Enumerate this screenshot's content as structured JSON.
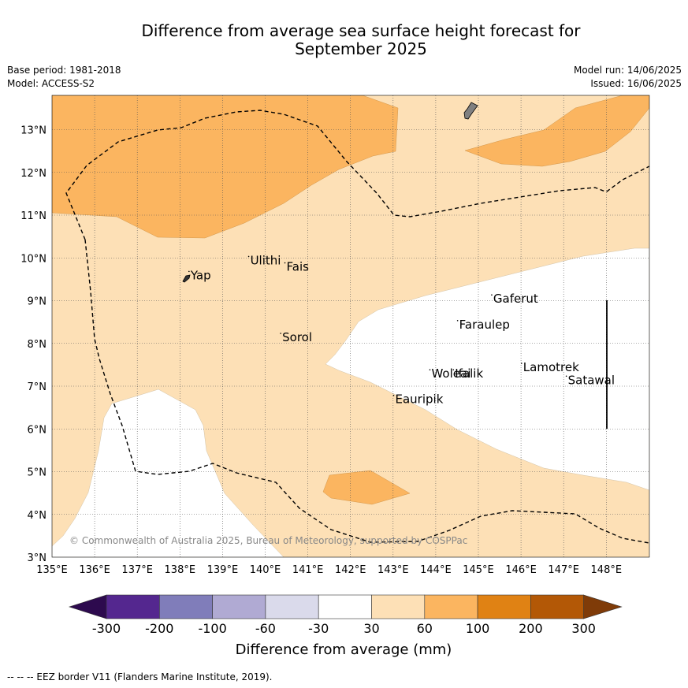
{
  "title_line1": "Difference from average sea surface height forecast for",
  "title_line2": "September 2025",
  "base_period": "Base period: 1981-2018",
  "model": "Model: ACCESS-S2",
  "model_run": "Model run: 14/06/2025",
  "issued": "Issued: 16/06/2025",
  "copyright": "© Commonwealth of Australia 2025, Bureau of Meteorology, supported by COSPPac",
  "footnote": "--  --  -- EEZ border V11 (Flanders Marine Institute, 2019).",
  "map": {
    "lon_range": [
      135,
      149
    ],
    "lat_range": [
      3,
      13.8
    ],
    "lon_ticks": [
      "135°E",
      "136°E",
      "137°E",
      "138°E",
      "139°E",
      "140°E",
      "141°E",
      "142°E",
      "143°E",
      "144°E",
      "145°E",
      "146°E",
      "147°E",
      "148°E"
    ],
    "lat_ticks": [
      "3°N",
      "4°N",
      "5°N",
      "6°N",
      "7°N",
      "8°N",
      "9°N",
      "10°N",
      "11°N",
      "12°N",
      "13°N"
    ],
    "places": [
      {
        "name": "Yap",
        "lon": 138.25,
        "lat": 9.5
      },
      {
        "name": "Ulithi",
        "lon": 139.65,
        "lat": 9.85
      },
      {
        "name": "Fais",
        "lon": 140.5,
        "lat": 9.7
      },
      {
        "name": "Gaferut",
        "lon": 145.35,
        "lat": 8.95
      },
      {
        "name": "Faraulep",
        "lon": 144.55,
        "lat": 8.35
      },
      {
        "name": "Sorol",
        "lon": 140.4,
        "lat": 8.05
      },
      {
        "name": "Lamotrek",
        "lon": 146.05,
        "lat": 7.35
      },
      {
        "name": "Woleai",
        "lon": 143.9,
        "lat": 7.2
      },
      {
        "name": "Ifalik",
        "lon": 144.45,
        "lat": 7.2
      },
      {
        "name": "Satawal",
        "lon": 147.1,
        "lat": 7.05
      },
      {
        "name": "Eauripik",
        "lon": 143.05,
        "lat": 6.6
      }
    ]
  },
  "legend": {
    "label": "Difference from average (mm)",
    "ticks": [
      "-300",
      "-200",
      "-100",
      "-60",
      "-30",
      "30",
      "60",
      "100",
      "200",
      "300"
    ],
    "colors": {
      "below_min": "#2d0a4e",
      "bins": [
        "#54278f",
        "#807dba",
        "#b0aad3",
        "#dadaeb",
        "#ffffff",
        "#fde0b6",
        "#fbb560",
        "#e08214",
        "#b35806"
      ],
      "above_max": "#7f3b08"
    }
  }
}
